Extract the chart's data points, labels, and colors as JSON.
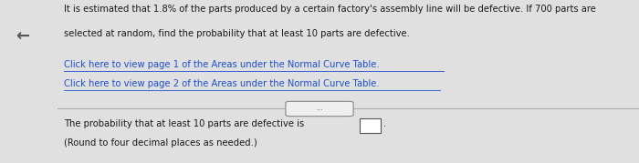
{
  "bg_color": "#e0e0e0",
  "panel_color": "#efefef",
  "text_color": "#1a1a1a",
  "link_color": "#1a4fd6",
  "arrow_color": "#555555",
  "main_text_line1": "It is estimated that 1.8% of the parts produced by a certain factory's assembly line will be defective. If 700 parts are",
  "main_text_line2": "selected at random, find the probability that at least 10 parts are defective.",
  "link1": "Click here to view page 1 of the Areas under the Normal Curve Table.",
  "link2": "Click here to view page 2 of the Areas under the Normal Curve Table.",
  "bottom_text1": "The probability that at least 10 parts are defective is",
  "bottom_text2": "(Round to four decimal places as needed.)",
  "arrow_symbol": "←",
  "divider_dots": "..."
}
